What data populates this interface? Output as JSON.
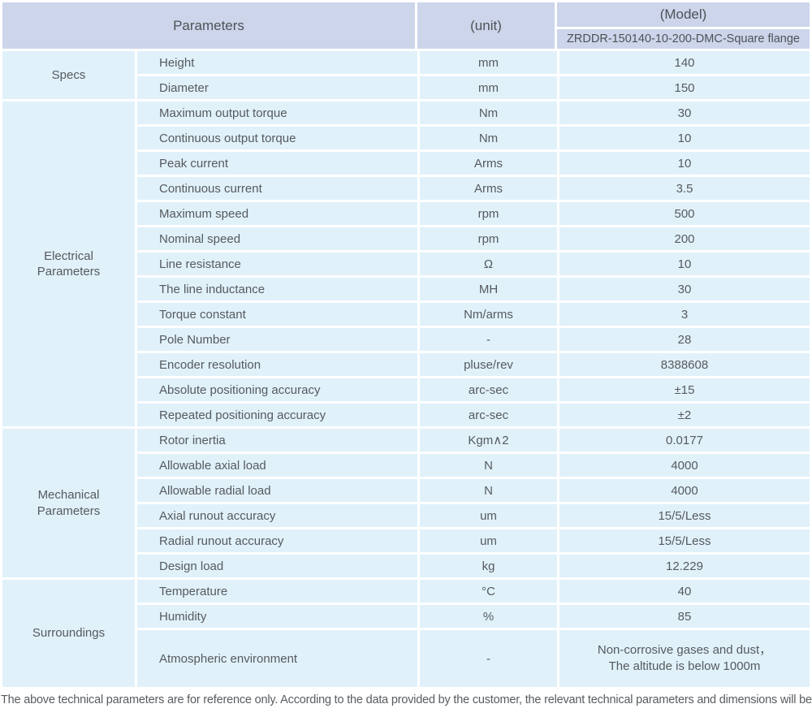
{
  "table": {
    "header": {
      "parameters_label": "Parameters",
      "unit_label": "(unit)",
      "model_label": "(Model)",
      "model_value": "ZRDDR-150140-10-200-DMC-Square flange"
    },
    "sections": [
      {
        "group": "Specs",
        "rows": [
          {
            "param": "Height",
            "unit": "mm",
            "value": "140"
          },
          {
            "param": "Diameter",
            "unit": "mm",
            "value": "150"
          }
        ]
      },
      {
        "group": "Electrical\nParameters",
        "rows": [
          {
            "param": "Maximum output torque",
            "unit": "Nm",
            "value": "30"
          },
          {
            "param": "Continuous output torque",
            "unit": "Nm",
            "value": "10"
          },
          {
            "param": "Peak current",
            "unit": "Arms",
            "value": "10"
          },
          {
            "param": "Continuous current",
            "unit": "Arms",
            "value": "3.5"
          },
          {
            "param": "Maximum speed",
            "unit": "rpm",
            "value": "500"
          },
          {
            "param": "Nominal speed",
            "unit": "rpm",
            "value": "200"
          },
          {
            "param": "Line resistance",
            "unit": "Ω",
            "value": "10"
          },
          {
            "param": "The line inductance",
            "unit": "MH",
            "value": "30"
          },
          {
            "param": "Torque constant",
            "unit": "Nm/arms",
            "value": "3"
          },
          {
            "param": "Pole Number",
            "unit": "-",
            "value": "28"
          },
          {
            "param": "Encoder resolution",
            "unit": "pluse/rev",
            "value": "8388608"
          },
          {
            "param": "Absolute positioning accuracy",
            "unit": "arc-sec",
            "value": "±15"
          },
          {
            "param": "Repeated positioning accuracy",
            "unit": "arc-sec",
            "value": "±2"
          }
        ]
      },
      {
        "group": "Mechanical\nParameters",
        "rows": [
          {
            "param": "Rotor inertia",
            "unit": "Kgm∧2",
            "value": "0.0177"
          },
          {
            "param": "Allowable axial load",
            "unit": "N",
            "value": "4000"
          },
          {
            "param": "Allowable radial load",
            "unit": "N",
            "value": "4000"
          },
          {
            "param": "Axial runout accuracy",
            "unit": "um",
            "value": "15/5/Less"
          },
          {
            "param": "Radial runout accuracy",
            "unit": "um",
            "value": "15/5/Less"
          },
          {
            "param": "Design load",
            "unit": "kg",
            "value": "12.229"
          }
        ]
      },
      {
        "group": "Surroundings",
        "rows": [
          {
            "param": "Temperature",
            "unit": "°C",
            "value": "40"
          },
          {
            "param": "Humidity",
            "unit": "%",
            "value": "85"
          },
          {
            "param": "Atmospheric environment",
            "unit": "-",
            "value": "Non-corrosive gases and dust，",
            "value2": "The altitude is below 1000m"
          }
        ]
      }
    ]
  },
  "footer": {
    "note": "The above technical parameters are for reference only. According to the data provided by the customer, the relevant technical parameters and dimensions will be issued."
  },
  "colors": {
    "header_bg": "#ccd5ea",
    "cell_bg": "#e0f1fa",
    "text": "#565a5e"
  }
}
